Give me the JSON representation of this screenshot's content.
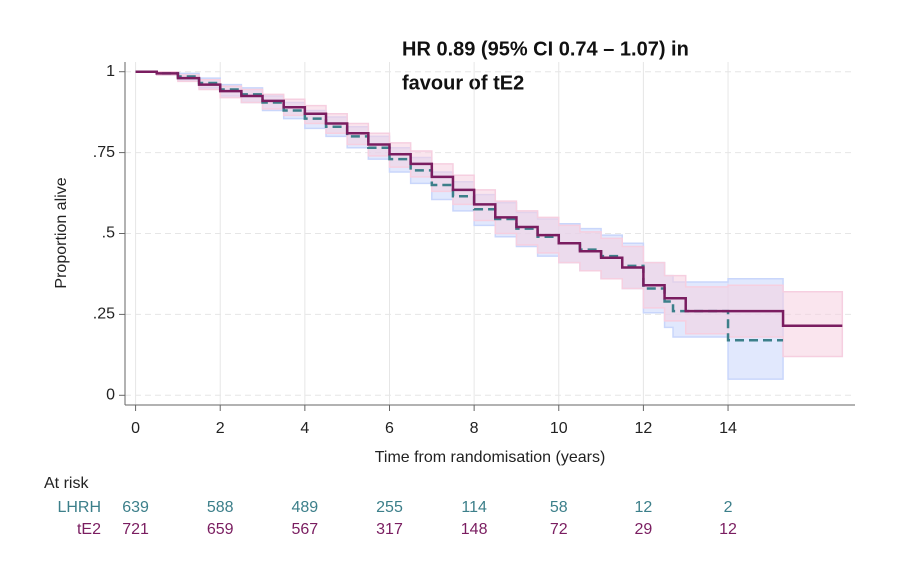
{
  "chart_data": {
    "type": "km",
    "annotation": [
      "HR 0.89 (95% CI 0.74 – 1.07) in",
      "favour of tE2"
    ],
    "y_label": "Proportion alive",
    "x_label": "Time from randomisation (years)",
    "xlim": [
      -0.25,
      17
    ],
    "ylim": [
      -0.03,
      1.03
    ],
    "xticks": [
      0,
      2,
      4,
      6,
      8,
      10,
      12,
      14
    ],
    "yticks": [
      0,
      {
        "value": 0.25,
        "label": ".25"
      },
      {
        "value": 0.5,
        "label": ".5"
      },
      {
        "value": 0.75,
        "label": ".75"
      },
      1
    ],
    "grid": true,
    "series": [
      {
        "name": "LHRH",
        "color": "#3c7f8a",
        "band_color": "#c9d6fb",
        "dashed": true,
        "x": [
          0,
          0.5,
          1,
          1.5,
          2,
          2.5,
          3,
          3.5,
          4,
          4.5,
          5,
          5.5,
          6,
          6.5,
          7,
          7.5,
          8,
          8.5,
          9,
          9.5,
          10,
          10.5,
          11,
          11.5,
          12,
          12.5,
          12.7,
          14,
          15.3
        ],
        "values": [
          1,
          0.995,
          0.985,
          0.965,
          0.945,
          0.93,
          0.905,
          0.88,
          0.855,
          0.83,
          0.8,
          0.765,
          0.73,
          0.695,
          0.65,
          0.615,
          0.575,
          0.545,
          0.515,
          0.49,
          0.47,
          0.45,
          0.43,
          0.4,
          0.33,
          0.29,
          0.26,
          0.17,
          0.17
        ],
        "lower": [
          1,
          0.99,
          0.975,
          0.95,
          0.925,
          0.905,
          0.88,
          0.855,
          0.825,
          0.8,
          0.765,
          0.73,
          0.69,
          0.655,
          0.605,
          0.57,
          0.525,
          0.49,
          0.46,
          0.43,
          0.41,
          0.385,
          0.36,
          0.33,
          0.255,
          0.21,
          0.18,
          0.05,
          0.05
        ],
        "upper": [
          1,
          1,
          0.995,
          0.98,
          0.96,
          0.95,
          0.925,
          0.905,
          0.88,
          0.86,
          0.83,
          0.8,
          0.765,
          0.735,
          0.69,
          0.66,
          0.62,
          0.595,
          0.565,
          0.545,
          0.53,
          0.515,
          0.495,
          0.47,
          0.41,
          0.37,
          0.35,
          0.36,
          0.36
        ]
      },
      {
        "name": "tE2",
        "color": "#7a1d60",
        "band_color": "#f6cfe0",
        "dashed": false,
        "x": [
          0,
          0.5,
          1,
          1.5,
          2,
          2.5,
          3,
          3.5,
          4,
          4.5,
          5,
          5.5,
          6,
          6.5,
          7,
          7.5,
          8,
          8.5,
          9,
          9.5,
          10,
          10.5,
          11,
          11.5,
          12,
          12.5,
          13,
          14,
          15.3,
          16.7
        ],
        "values": [
          1,
          0.995,
          0.98,
          0.96,
          0.94,
          0.925,
          0.91,
          0.89,
          0.87,
          0.84,
          0.81,
          0.775,
          0.745,
          0.715,
          0.675,
          0.635,
          0.59,
          0.55,
          0.52,
          0.495,
          0.47,
          0.445,
          0.425,
          0.395,
          0.34,
          0.3,
          0.26,
          0.26,
          0.215,
          0.215
        ],
        "lower": [
          1,
          0.99,
          0.97,
          0.945,
          0.92,
          0.905,
          0.885,
          0.865,
          0.84,
          0.81,
          0.775,
          0.74,
          0.705,
          0.675,
          0.63,
          0.59,
          0.54,
          0.5,
          0.465,
          0.44,
          0.41,
          0.385,
          0.36,
          0.33,
          0.27,
          0.23,
          0.19,
          0.18,
          0.12,
          0.12
        ],
        "upper": [
          1,
          1,
          0.99,
          0.975,
          0.955,
          0.945,
          0.93,
          0.915,
          0.895,
          0.87,
          0.84,
          0.81,
          0.78,
          0.755,
          0.715,
          0.68,
          0.635,
          0.6,
          0.57,
          0.55,
          0.525,
          0.505,
          0.485,
          0.46,
          0.41,
          0.37,
          0.335,
          0.34,
          0.32,
          0.32
        ]
      }
    ],
    "risk_table": {
      "title": "At risk",
      "rows": [
        {
          "name": "LHRH",
          "color": "#3c7f8a",
          "values": [
            639,
            588,
            489,
            255,
            114,
            58,
            12,
            2
          ]
        },
        {
          "name": "tE2",
          "color": "#7a1d60",
          "values": [
            721,
            659,
            567,
            317,
            148,
            72,
            29,
            12
          ]
        }
      ]
    }
  }
}
